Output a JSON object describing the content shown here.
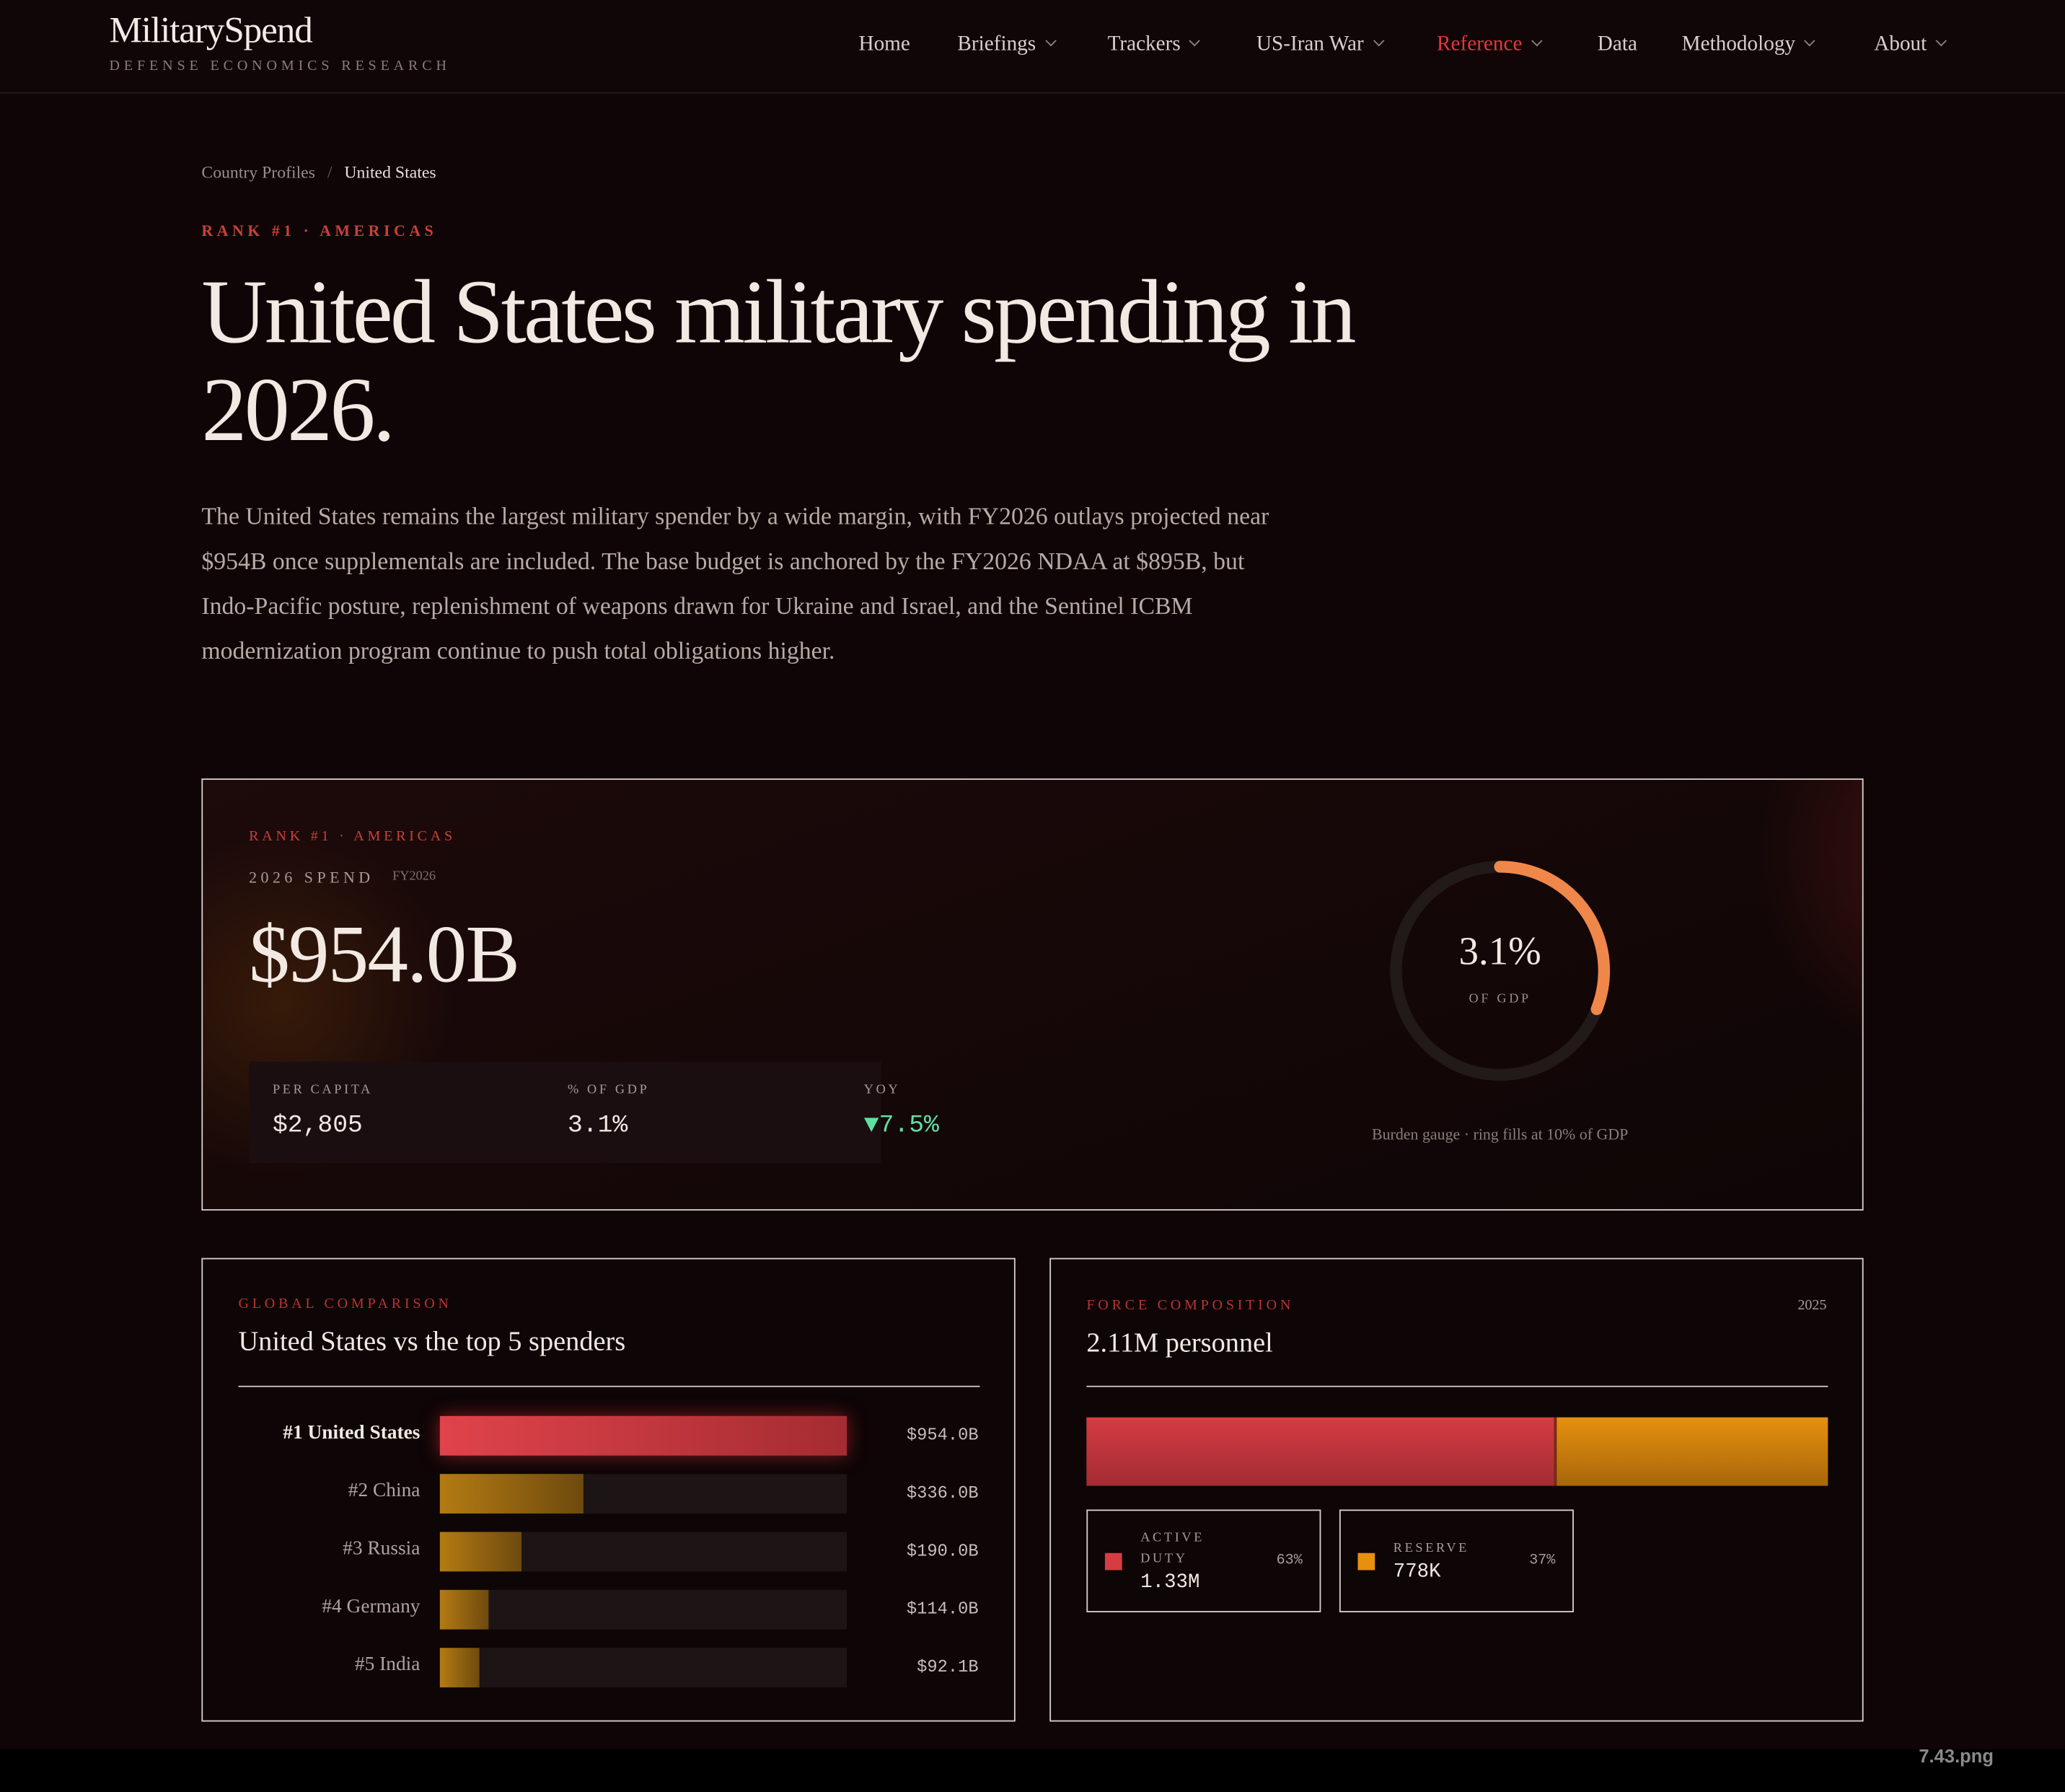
{
  "nav": {
    "brand": "MilitarySpend",
    "tagline": "DEFENSE ECONOMICS RESEARCH",
    "links": [
      "Home",
      "Briefings",
      "Trackers",
      "US-Iran War",
      "Reference",
      "Data",
      "Methodology",
      "About"
    ]
  },
  "breadcrumb": [
    "Country Profiles",
    "/",
    "United States"
  ],
  "eyebrow": "RANK #1 · AMERICAS",
  "title": "United States military spending in 2026.",
  "intro": "The United States remains the largest military spender by a wide margin, with FY2026 outlays projected near $954B once supplementals are included. The base budget is anchored by the FY2026 NDAA at $895B, but Indo-Pacific posture, replenishment of weapons drawn for Ukraine and Israel, and the Sentinel ICBM modernization program continue to push total obligations higher.",
  "summary": {
    "eyebrow": "RANK #1 · AMERICAS",
    "label": "2026 SPEND",
    "fiscal_year": "FY2026",
    "total": "$954.0B",
    "stats": [
      {
        "label": "PER CAPITA",
        "value": "$2,805"
      },
      {
        "label": "% OF GDP",
        "value": "3.1%"
      },
      {
        "label": "YOY",
        "value": "▼7.5%"
      }
    ],
    "gauge": {
      "type": "gauge",
      "value": 3.1,
      "value_label": "3.1%",
      "range": [
        0,
        10
      ],
      "unit": "OF GDP",
      "caption": "Burden gauge · ring fills at 10% of GDP",
      "color": "#f0874a"
    }
  },
  "comparison": {
    "type": "bar",
    "eyebrow": "GLOBAL COMPARISON",
    "title": "United States vs the top 5 spenders",
    "categories": [
      "#1 United States",
      "#2 China",
      "#3 Russia",
      "#4 Germany",
      "#5 India"
    ],
    "values": [
      954.0,
      336.0,
      190.0,
      114.0,
      92.1
    ],
    "value_labels": [
      "$954.0B",
      "$336.0B",
      "$190.0B",
      "$114.0B",
      "$92.1B"
    ]
  },
  "force": {
    "type": "stacked-bar",
    "eyebrow": "FORCE COMPOSITION",
    "year": "2025",
    "title": "2.11M personnel",
    "series": [
      {
        "name": "ACTIVE DUTY",
        "count": "1.33M",
        "values": [
          63
        ],
        "value_labels": [
          "63%"
        ],
        "color": "#d63c42"
      },
      {
        "name": "RESERVE",
        "count": "778K",
        "values": [
          37
        ],
        "value_labels": [
          "37%"
        ],
        "color": "#e6900e"
      }
    ]
  },
  "file_label": "7.43.png"
}
